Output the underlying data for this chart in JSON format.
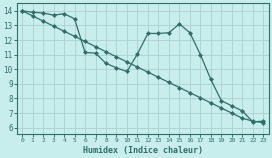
{
  "xlabel": "Humidex (Indice chaleur)",
  "bg_color": "#c8eded",
  "grid_color": "#aed4d4",
  "line_color": "#2d7068",
  "xlim": [
    -0.5,
    23.5
  ],
  "ylim": [
    5.6,
    14.5
  ],
  "xticks": [
    0,
    1,
    2,
    3,
    4,
    5,
    6,
    7,
    8,
    9,
    10,
    11,
    12,
    13,
    14,
    15,
    16,
    17,
    18,
    19,
    20,
    21,
    22,
    23
  ],
  "yticks": [
    6,
    7,
    8,
    9,
    10,
    11,
    12,
    13,
    14
  ],
  "straight_x": [
    0,
    1,
    2,
    3,
    4,
    5,
    6,
    7,
    8,
    9,
    10,
    11,
    12,
    13,
    14,
    15,
    16,
    17,
    18,
    19,
    20,
    21,
    22,
    23
  ],
  "straight_y": [
    14.0,
    13.65,
    13.3,
    12.95,
    12.6,
    12.25,
    11.9,
    11.55,
    11.2,
    10.85,
    10.5,
    10.15,
    9.8,
    9.45,
    9.1,
    8.75,
    8.4,
    8.05,
    7.7,
    7.35,
    7.0,
    6.65,
    6.45,
    6.35
  ],
  "wavy_x": [
    0,
    1,
    2,
    3,
    4,
    5,
    6,
    7,
    8,
    9,
    10,
    11,
    12,
    13,
    14,
    15,
    16,
    17,
    18,
    19,
    20,
    21,
    22,
    23
  ],
  "wavy_y": [
    14.0,
    13.9,
    13.85,
    13.7,
    13.8,
    13.45,
    11.15,
    11.1,
    10.4,
    10.1,
    9.85,
    11.05,
    12.45,
    12.45,
    12.5,
    13.1,
    12.5,
    11.0,
    9.3,
    7.85,
    7.5,
    7.15,
    6.4,
    6.45
  ]
}
